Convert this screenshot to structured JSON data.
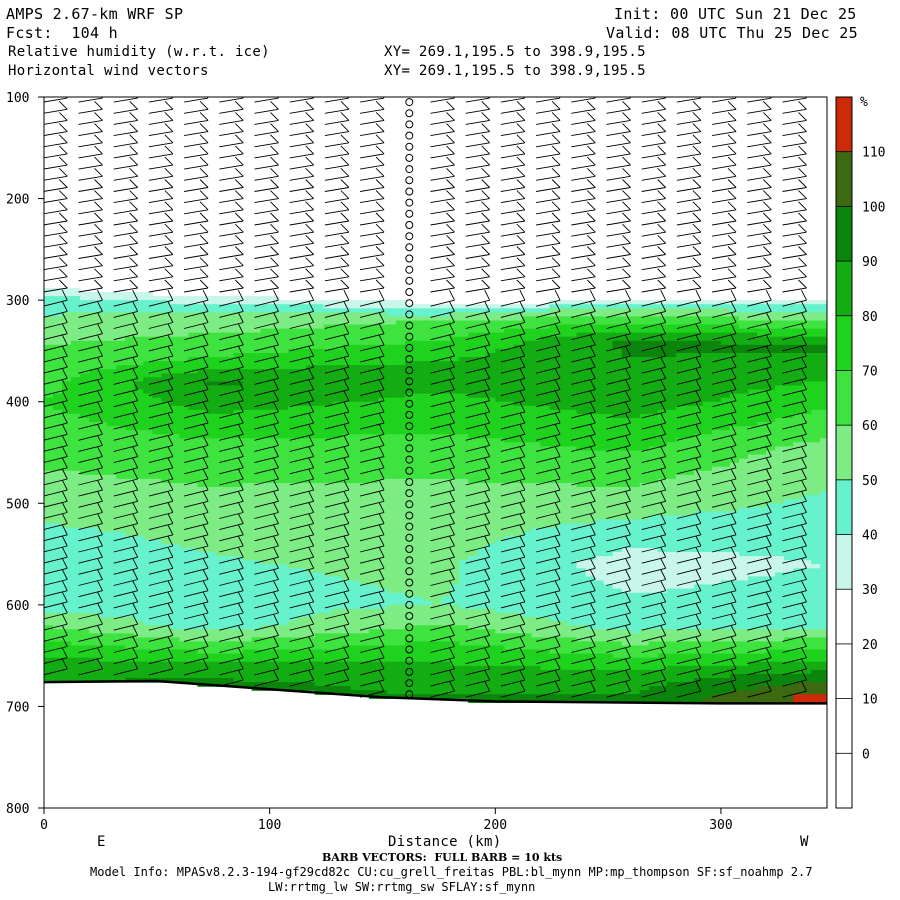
{
  "header": {
    "model_line": "AMPS 2.67-km WRF SP",
    "fcst_line": "Fcst:  104 h",
    "init_line": "Init: 00 UTC Sun 21 Dec 25",
    "valid_line": "Valid: 08 UTC Thu 25 Dec 25",
    "field1": "Relative humidity (w.r.t. ice)",
    "field2": "Horizontal wind vectors",
    "xy1": "XY= 269.1,195.5 to 398.9,195.5",
    "xy2": "XY= 269.1,195.5 to 398.9,195.5"
  },
  "footer": {
    "barb_note": "BARB VECTORS:  FULL BARB = 10 kts",
    "model_info": "Model Info: MPASv8.2.3-194-gf29cd82c CU:cu_grell_freitas PBL:bl_mynn MP:mp_thompson SF:sf_noahmp 2.7",
    "model_info2": "LW:rrtmg_lw SW:rrtmg_sw SFLAY:sf_mynn"
  },
  "chart_data": {
    "type": "heatmap",
    "title": "Relative humidity (w.r.t. ice)",
    "xlabel": "Distance (km)",
    "ylabel": "",
    "xlim": [
      0,
      347
    ],
    "ylim": [
      800,
      100
    ],
    "xticks": [
      0,
      100,
      200,
      300
    ],
    "yticks": [
      100,
      200,
      300,
      400,
      500,
      600,
      700,
      800
    ],
    "direction_labels": {
      "left": "E",
      "right": "W"
    },
    "colorbar": {
      "unit": "%",
      "ticks": [
        0,
        10,
        20,
        30,
        40,
        50,
        60,
        70,
        80,
        90,
        100,
        110
      ],
      "bands": [
        {
          "from": 30,
          "to": 40,
          "color": "#c8f6ea"
        },
        {
          "from": 40,
          "to": 50,
          "color": "#66f2cc"
        },
        {
          "from": 50,
          "to": 60,
          "color": "#7dec84"
        },
        {
          "from": 60,
          "to": 70,
          "color": "#3fe33f"
        },
        {
          "from": 70,
          "to": 80,
          "color": "#1ed21e"
        },
        {
          "from": 80,
          "to": 90,
          "color": "#13ad13"
        },
        {
          "from": 90,
          "to": 100,
          "color": "#0b850b"
        },
        {
          "from": 100,
          "to": 110,
          "color": "#3d6a10"
        },
        {
          "from": 110,
          "to": 120,
          "color": "#cc2a08"
        }
      ]
    },
    "rh_columns_pct": [
      {
        "x": 0,
        "levels": {
          "100": 0,
          "280": 20,
          "300": 45,
          "350": 62,
          "400": 70,
          "500": 55,
          "560": 40,
          "600": 45,
          "650": 80,
          "680": 92
        }
      },
      {
        "x": 75,
        "levels": {
          "100": 0,
          "290": 20,
          "310": 50,
          "360": 72,
          "380": 92,
          "450": 65,
          "550": 50,
          "620": 45,
          "660": 82,
          "680": 94
        }
      },
      {
        "x": 175,
        "levels": {
          "100": 0,
          "300": 25,
          "320": 60,
          "370": 85,
          "430": 70,
          "500": 55,
          "600": 50,
          "650": 78,
          "690": 90
        }
      },
      {
        "x": 260,
        "levels": {
          "100": 0,
          "300": 25,
          "310": 55,
          "340": 92,
          "400": 85,
          "500": 55,
          "560": 35,
          "620": 45,
          "670": 85,
          "695": 92
        }
      },
      {
        "x": 347,
        "levels": {
          "100": 0,
          "290": 20,
          "310": 45,
          "345": 92,
          "450": 55,
          "560": 40,
          "620": 48,
          "660": 85,
          "690": 114
        }
      }
    ],
    "terrain_pressure": [
      {
        "x": 0,
        "p": 676
      },
      {
        "x": 50,
        "p": 675
      },
      {
        "x": 100,
        "p": 683
      },
      {
        "x": 150,
        "p": 691
      },
      {
        "x": 200,
        "p": 695
      },
      {
        "x": 250,
        "p": 696
      },
      {
        "x": 300,
        "p": 697
      },
      {
        "x": 347,
        "p": 697
      }
    ],
    "wind_barbs_note": "columns of barbs every ~15 km, 100-700 hPa"
  }
}
